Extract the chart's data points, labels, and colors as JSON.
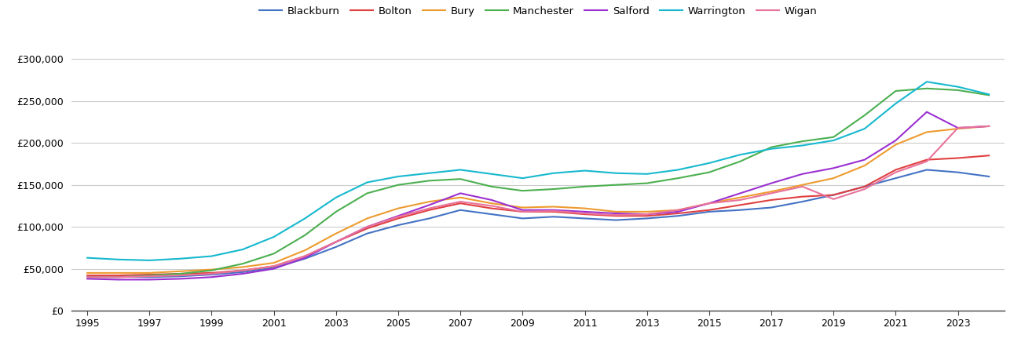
{
  "years": [
    1995,
    1996,
    1997,
    1998,
    1999,
    2000,
    2001,
    2002,
    2003,
    2004,
    2005,
    2006,
    2007,
    2008,
    2009,
    2010,
    2011,
    2012,
    2013,
    2014,
    2015,
    2016,
    2017,
    2018,
    2019,
    2020,
    2021,
    2022,
    2023,
    2024
  ],
  "series": {
    "Blackburn": [
      40000,
      40500,
      40000,
      41000,
      43000,
      46000,
      51000,
      62000,
      76000,
      92000,
      102000,
      110000,
      120000,
      115000,
      110000,
      112000,
      110000,
      108000,
      110000,
      113000,
      118000,
      120000,
      123000,
      130000,
      138000,
      148000,
      158000,
      168000,
      165000,
      160000
    ],
    "Bolton": [
      42000,
      42000,
      43000,
      44000,
      45000,
      48000,
      53000,
      65000,
      82000,
      98000,
      110000,
      120000,
      128000,
      122000,
      118000,
      118000,
      115000,
      113000,
      113000,
      116000,
      120000,
      126000,
      132000,
      136000,
      138000,
      148000,
      168000,
      180000,
      182000,
      185000
    ],
    "Bury": [
      45000,
      45000,
      45000,
      47000,
      49000,
      52000,
      57000,
      72000,
      92000,
      110000,
      122000,
      130000,
      135000,
      128000,
      123000,
      124000,
      122000,
      118000,
      118000,
      120000,
      128000,
      135000,
      142000,
      150000,
      158000,
      173000,
      198000,
      213000,
      217000,
      220000
    ],
    "Manchester": [
      40000,
      40000,
      42000,
      44000,
      48000,
      56000,
      68000,
      90000,
      118000,
      140000,
      150000,
      155000,
      157000,
      148000,
      143000,
      145000,
      148000,
      150000,
      152000,
      158000,
      165000,
      178000,
      195000,
      202000,
      207000,
      233000,
      262000,
      265000,
      263000,
      257000
    ],
    "Salford": [
      38000,
      37000,
      37000,
      38000,
      40000,
      44000,
      50000,
      63000,
      82000,
      100000,
      113000,
      126000,
      140000,
      132000,
      120000,
      120000,
      118000,
      116000,
      115000,
      118000,
      128000,
      140000,
      152000,
      163000,
      170000,
      180000,
      203000,
      237000,
      218000,
      220000
    ],
    "Warrington": [
      63000,
      61000,
      60000,
      62000,
      65000,
      73000,
      88000,
      110000,
      135000,
      153000,
      160000,
      164000,
      168000,
      163000,
      158000,
      164000,
      167000,
      164000,
      163000,
      168000,
      176000,
      186000,
      193000,
      197000,
      203000,
      217000,
      247000,
      273000,
      267000,
      258000
    ],
    "Wigan": [
      40000,
      40000,
      41000,
      42000,
      44000,
      48000,
      53000,
      65000,
      82000,
      100000,
      112000,
      122000,
      130000,
      125000,
      118000,
      119000,
      116000,
      114000,
      115000,
      120000,
      128000,
      132000,
      140000,
      148000,
      133000,
      145000,
      165000,
      178000,
      218000,
      220000
    ]
  },
  "colors": {
    "Blackburn": "#4472C4",
    "Bolton": "#E04040",
    "Bury": "#ED9B2F",
    "Manchester": "#4CAF50",
    "Salford": "#9B30D0",
    "Warrington": "#17B8CE",
    "Wigan": "#E8729A"
  },
  "ylim": [
    0,
    320000
  ],
  "yticks": [
    0,
    50000,
    100000,
    150000,
    200000,
    250000,
    300000
  ],
  "xticks": [
    1995,
    1997,
    1999,
    2001,
    2003,
    2005,
    2007,
    2009,
    2011,
    2013,
    2015,
    2017,
    2019,
    2021,
    2023
  ],
  "background_color": "#ffffff",
  "grid_color": "#cccccc",
  "line_width": 1.5
}
